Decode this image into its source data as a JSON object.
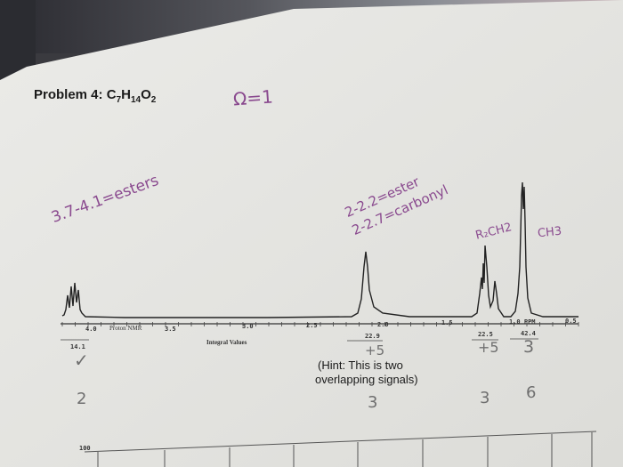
{
  "problem": {
    "label": "Problem 4:",
    "formula": "C7H14O2"
  },
  "annotations": {
    "dou": "Ω=1",
    "esters": "3.7-4.1=esters",
    "ester_shift": "2-2.2=ester",
    "carbonyl_shift": "2-2.7=carbonyl",
    "r2ch2": "R₂CH2",
    "ch3": "CH3",
    "tick_left": "✓",
    "tick_mid": "+5",
    "tick_right1": "+5",
    "tick_right2": "3"
  },
  "axis": {
    "ticks": [
      "4.0",
      "3.5",
      "3.0",
      "2.5",
      "2.0",
      "1.5",
      "1.0 PPM",
      "0.5"
    ],
    "title": "Proton NMR",
    "integral_title": "Integral Values"
  },
  "integrals": [
    "14.1",
    "22.9",
    "22.5",
    "42.4"
  ],
  "hint": {
    "line1": "(Hint: This is two",
    "line2": "overlapping signals)"
  },
  "proton_counts": [
    "2",
    "3",
    "3",
    "6"
  ],
  "lower_axis": {
    "label": "100"
  },
  "colors": {
    "ink": "#8a4a8f",
    "paper": "#f1f1ee",
    "spectrum": "#222222"
  }
}
